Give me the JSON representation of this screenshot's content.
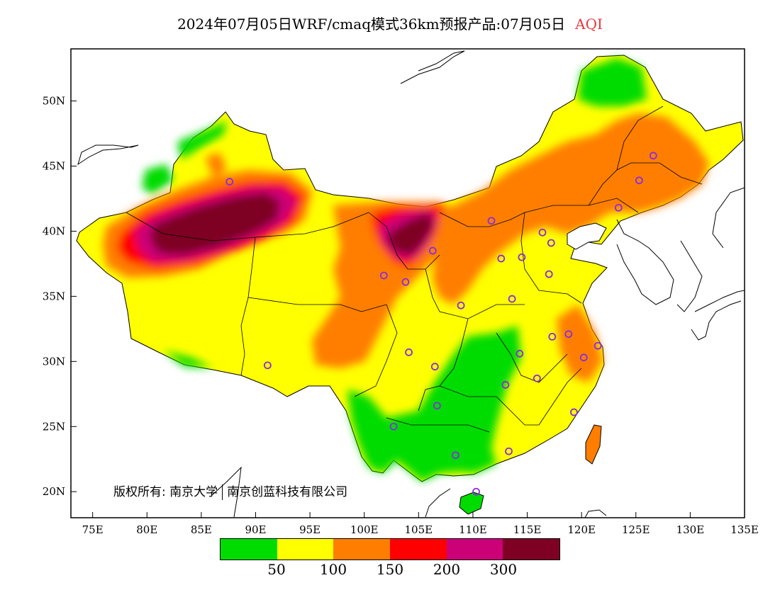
{
  "title": {
    "main": "2024年07月05日WRF/cmaq模式36km预报产品:07月05日",
    "variable": "AQI"
  },
  "axes": {
    "lat_labels": [
      "50N",
      "45N",
      "40N",
      "35N",
      "30N",
      "25N",
      "20N"
    ],
    "lon_labels": [
      "75E",
      "80E",
      "85E",
      "90E",
      "95E",
      "100E",
      "105E",
      "110E",
      "115E",
      "120E",
      "125E",
      "130E",
      "135E"
    ],
    "lat_range": [
      18,
      54
    ],
    "lon_range": [
      73,
      135
    ]
  },
  "copyright": {
    "label": "版权所有:",
    "org1": "南京大学",
    "org2": "南京创蓝科技有限公司"
  },
  "legend": {
    "colors": [
      "#00dc00",
      "#ffff00",
      "#ff7e00",
      "#ff0000",
      "#cc0077",
      "#7e0023"
    ],
    "labels": [
      "50",
      "100",
      "150",
      "200",
      "300"
    ]
  },
  "stations": [
    [
      87.6,
      43.8
    ],
    [
      101.8,
      36.6
    ],
    [
      103.8,
      36.1
    ],
    [
      106.3,
      38.5
    ],
    [
      111.7,
      40.8
    ],
    [
      112.6,
      37.9
    ],
    [
      114.5,
      38.0
    ],
    [
      116.4,
      39.9
    ],
    [
      117.2,
      39.1
    ],
    [
      123.4,
      41.8
    ],
    [
      125.3,
      43.9
    ],
    [
      126.6,
      45.8
    ],
    [
      117.0,
      36.7
    ],
    [
      113.6,
      34.8
    ],
    [
      108.9,
      34.3
    ],
    [
      104.1,
      30.7
    ],
    [
      106.5,
      29.6
    ],
    [
      114.3,
      30.6
    ],
    [
      117.3,
      31.9
    ],
    [
      118.8,
      32.1
    ],
    [
      120.2,
      30.3
    ],
    [
      121.5,
      31.2
    ],
    [
      115.9,
      28.7
    ],
    [
      113.0,
      28.2
    ],
    [
      119.3,
      26.1
    ],
    [
      106.7,
      26.6
    ],
    [
      102.7,
      25.0
    ],
    [
      108.4,
      22.8
    ],
    [
      113.3,
      23.1
    ],
    [
      110.3,
      20.0
    ],
    [
      91.1,
      29.7
    ]
  ]
}
